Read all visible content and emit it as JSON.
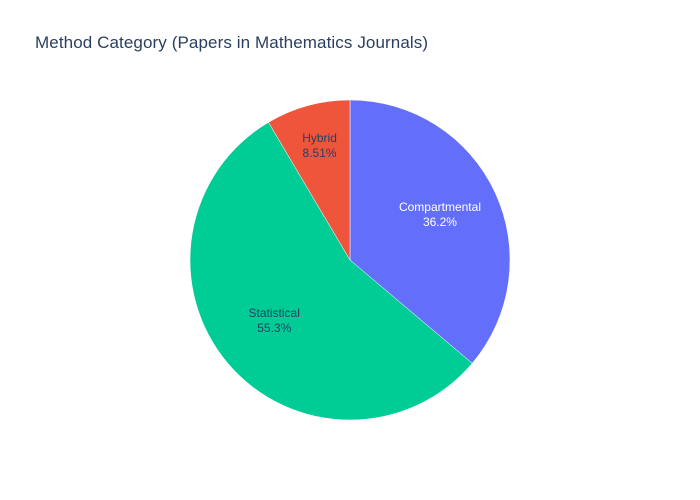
{
  "chart_data": {
    "type": "pie",
    "title": "Method Category (Papers in Mathematics Journals)",
    "slices": [
      {
        "label": "Compartmental",
        "percent_label": "36.2%",
        "value": 36.17,
        "color": "#636efa",
        "text_color": "#ffffff"
      },
      {
        "label": "Statistical",
        "percent_label": "55.3%",
        "value": 55.32,
        "color": "#00cc96",
        "text_color": "#2a3f5f"
      },
      {
        "label": "Hybrid",
        "percent_label": "8.51%",
        "value": 8.51,
        "color": "#ef553b",
        "text_color": "#2a3f5f"
      }
    ],
    "direction": "clockwise",
    "start": "12 o'clock",
    "legend": "none"
  }
}
